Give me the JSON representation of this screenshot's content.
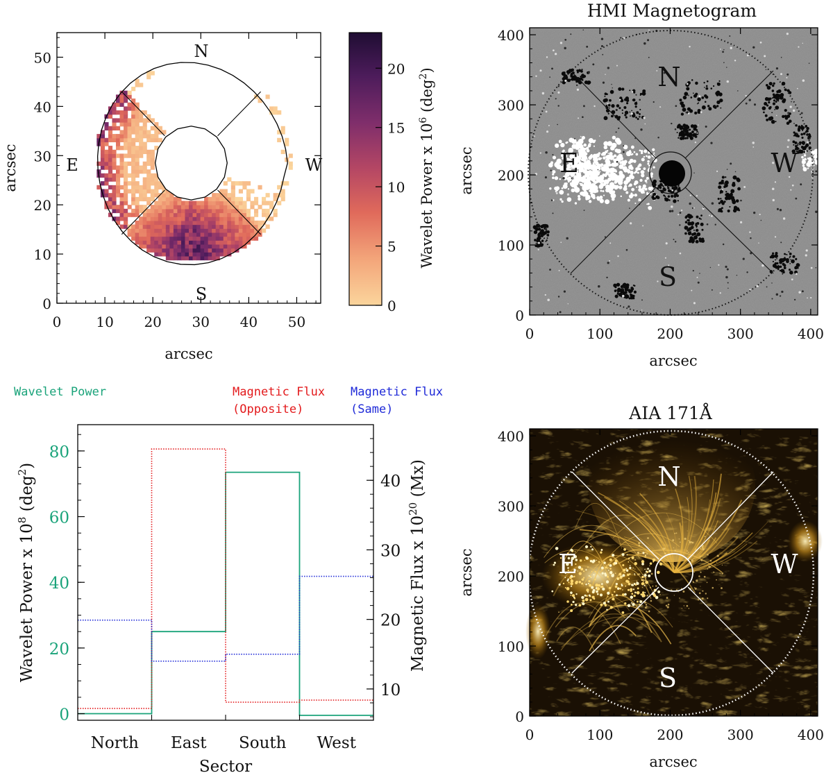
{
  "chart_data": [
    {
      "type": "heatmap",
      "panel": "wavelet-power-map",
      "xlabel": "arcsec",
      "ylabel": "arcsec",
      "xlim": [
        0,
        55
      ],
      "ylim": [
        0,
        55
      ],
      "x_ticks": [
        "0",
        "10",
        "20",
        "30",
        "40",
        "50"
      ],
      "y_ticks": [
        "0",
        "10",
        "20",
        "30",
        "40",
        "50"
      ],
      "direction_labels": {
        "north": "N",
        "south": "S",
        "east": "E",
        "west": "W"
      },
      "colorbar": {
        "label_prefix": "Wavelet Power x 10",
        "label_exp": "6",
        "label_unit_open": " (deg",
        "label_unit_exp": "2",
        "label_unit_close": ")",
        "range": [
          0,
          23
        ],
        "ticks": [
          "0",
          "5",
          "10",
          "15",
          "20"
        ],
        "colors": [
          "#fbd59c",
          "#f3a57a",
          "#e06a5b",
          "#b54764",
          "#7f2e6b",
          "#4d1c5b",
          "#1f0d33"
        ]
      },
      "ring_center": [
        28,
        28.5
      ],
      "outer_radius": 20.5,
      "inner_radius": 7.5
    },
    {
      "type": "heatmap",
      "panel": "hmi-magnetogram",
      "title": "HMI Magnetogram",
      "xlabel": "arcsec",
      "ylabel": "arcsec",
      "xlim": [
        0,
        410
      ],
      "ylim": [
        0,
        410
      ],
      "x_ticks": [
        "0",
        "100",
        "200",
        "300",
        "400"
      ],
      "y_ticks": [
        "0",
        "100",
        "200",
        "300",
        "400"
      ],
      "direction_labels": {
        "north": "N",
        "south": "S",
        "east": "E",
        "west": "W"
      },
      "sunspot_center": [
        200,
        200
      ]
    },
    {
      "type": "bar",
      "panel": "sector-histogram",
      "categories": [
        "North",
        "East",
        "South",
        "West"
      ],
      "xlabel": "Sector",
      "ylabel_left_prefix": "Wavelet Power x 10",
      "ylabel_left_exp": "8",
      "ylabel_left_unit_open": " (deg",
      "ylabel_left_unit_exp": "2",
      "ylabel_left_unit_close": ")",
      "ylabel_right_prefix": "Magnetic Flux x 10",
      "ylabel_right_exp": "20",
      "ylabel_right_unit": " (Mx)",
      "ylim_left": [
        -2,
        88
      ],
      "ylim_right": [
        5.5,
        48
      ],
      "left_ticks": [
        "0",
        "20",
        "40",
        "60",
        "80"
      ],
      "right_ticks": [
        "10",
        "20",
        "30",
        "40"
      ],
      "series": [
        {
          "name": "Wavelet Power",
          "axis": "left",
          "color": "#1aa37a",
          "style": "solid",
          "values": [
            0,
            25,
            73.5,
            -0.5
          ]
        },
        {
          "name": "Magnetic Flux",
          "subtitle": "(Opposite)",
          "axis": "right",
          "color": "#e31a1c",
          "style": "dotted",
          "values": [
            7.2,
            44.5,
            8.1,
            8.4
          ]
        },
        {
          "name": "Magnetic Flux",
          "subtitle": "(Same)",
          "axis": "right",
          "color": "#1f2ad8",
          "style": "dotted",
          "values": [
            19.9,
            14.0,
            15.0,
            26.2
          ]
        }
      ]
    },
    {
      "type": "heatmap",
      "panel": "aia-171",
      "title": "AIA 171Å",
      "xlabel": "arcsec",
      "ylabel": "arcsec",
      "xlim": [
        0,
        410
      ],
      "ylim": [
        0,
        410
      ],
      "x_ticks": [
        "0",
        "100",
        "200",
        "300",
        "400"
      ],
      "y_ticks": [
        "0",
        "100",
        "200",
        "300",
        "400"
      ],
      "direction_labels": {
        "north": "N",
        "south": "S",
        "east": "E",
        "west": "W"
      }
    }
  ]
}
